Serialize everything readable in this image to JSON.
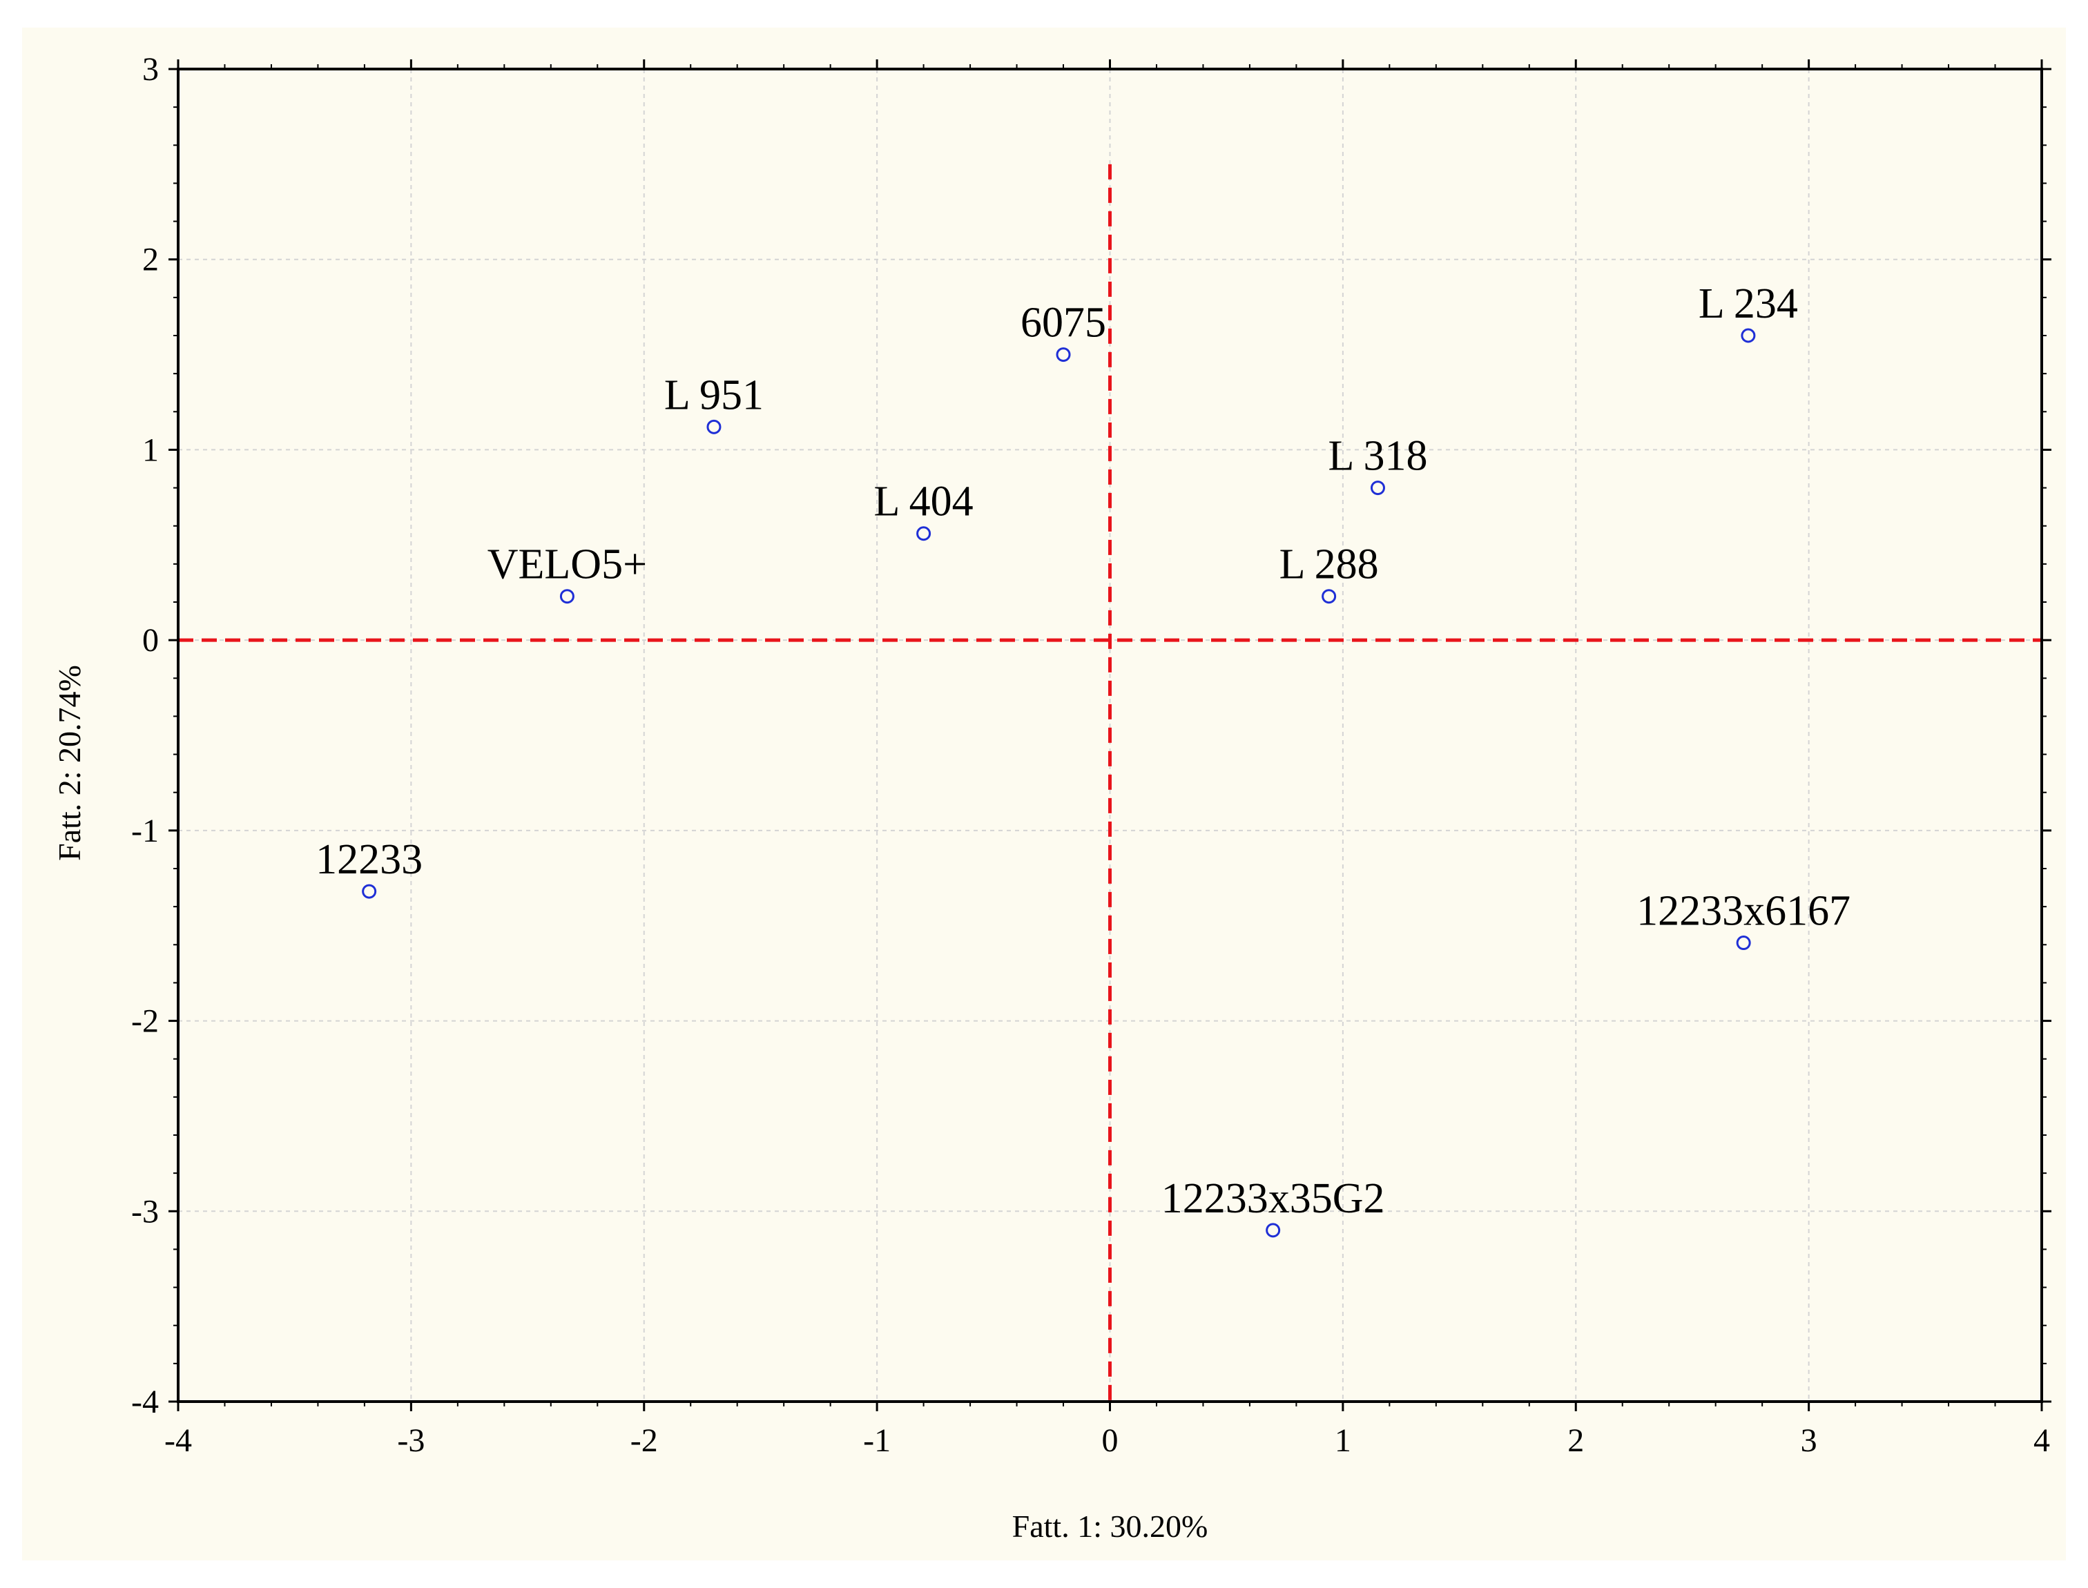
{
  "chart_data": {
    "type": "scatter",
    "xlabel": "Fatt.  1: 30.20%",
    "ylabel": "Fatt.  2: 20.74%",
    "xlim": [
      -4,
      4
    ],
    "ylim": [
      -4,
      3
    ],
    "x_ticks": [
      -4,
      -3,
      -2,
      -1,
      0,
      1,
      2,
      3,
      4
    ],
    "y_ticks": [
      -4,
      -3,
      -2,
      -1,
      0,
      1,
      2,
      3
    ],
    "grid": true,
    "marker_color": "#1f2fd6",
    "reference_line_color": "#e8141b",
    "reference_lines": {
      "x": 0,
      "y": 0
    },
    "points": [
      {
        "label": "6075",
        "x": -0.2,
        "y": 1.5
      },
      {
        "label": "L 951",
        "x": -1.7,
        "y": 1.12
      },
      {
        "label": "L 404",
        "x": -0.8,
        "y": 0.56
      },
      {
        "label": "VELO5+",
        "x": -2.33,
        "y": 0.23
      },
      {
        "label": "12233",
        "x": -3.18,
        "y": -1.32
      },
      {
        "label": "L 234",
        "x": 2.74,
        "y": 1.6
      },
      {
        "label": "L 318",
        "x": 1.15,
        "y": 0.8
      },
      {
        "label": "L 288",
        "x": 0.94,
        "y": 0.23
      },
      {
        "label": "12233x6167",
        "x": 2.72,
        "y": -1.59
      },
      {
        "label": "12233x35G2",
        "x": 0.7,
        "y": -3.1
      }
    ]
  }
}
